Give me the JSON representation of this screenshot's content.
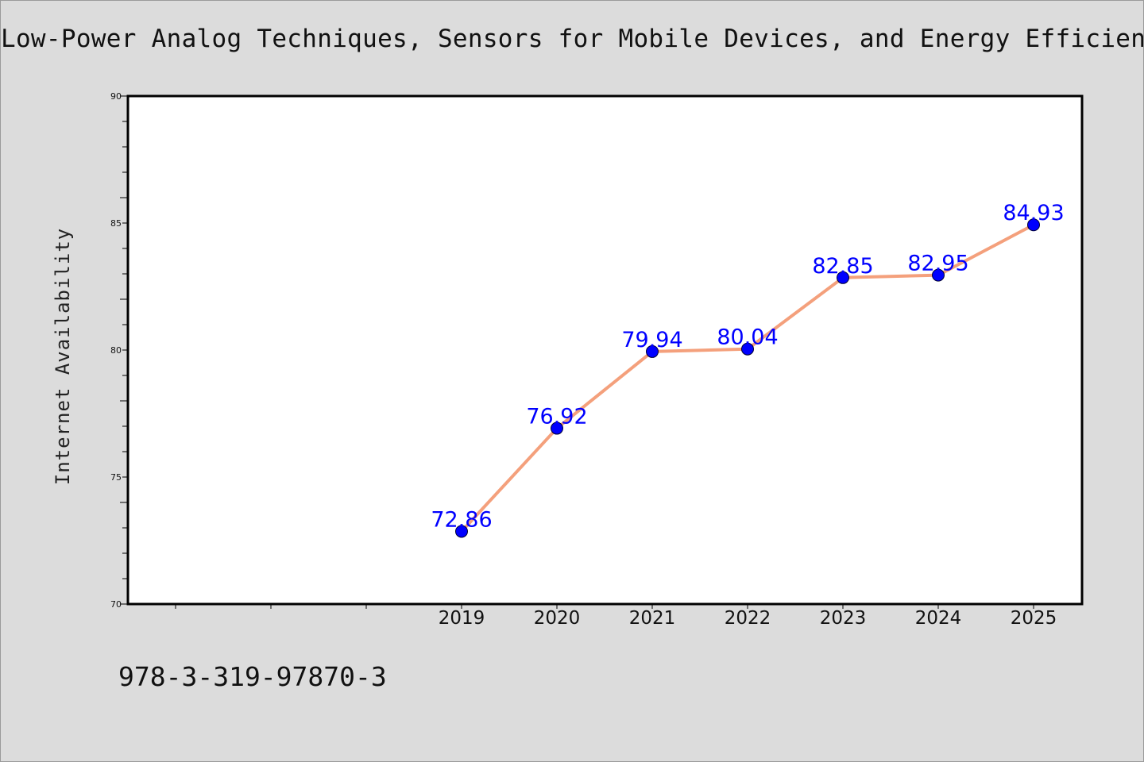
{
  "chart_data": {
    "type": "line",
    "title": "Low-Power Analog Techniques, Sensors for Mobile Devices, and Energy Efficient Am",
    "ylabel": "Internet Availability",
    "xlabel": "",
    "x": [
      "2019",
      "2020",
      "2021",
      "2022",
      "2023",
      "2024",
      "2025"
    ],
    "values": [
      72.86,
      76.92,
      79.94,
      80.04,
      82.85,
      82.95,
      84.93
    ],
    "data_labels": [
      "72.86",
      "76.92",
      "79.94",
      "80.04",
      "82.85",
      "82.95",
      "84.93"
    ],
    "y_ticks": [
      "70",
      "75",
      "80",
      "85",
      "90"
    ],
    "ylim": [
      70,
      90
    ],
    "grid": false,
    "line_color": "#f4a07c",
    "marker_color": "#0000ff",
    "label_color": "#0000ff"
  },
  "footer": {
    "isbn": "978-3-319-97870-3"
  }
}
